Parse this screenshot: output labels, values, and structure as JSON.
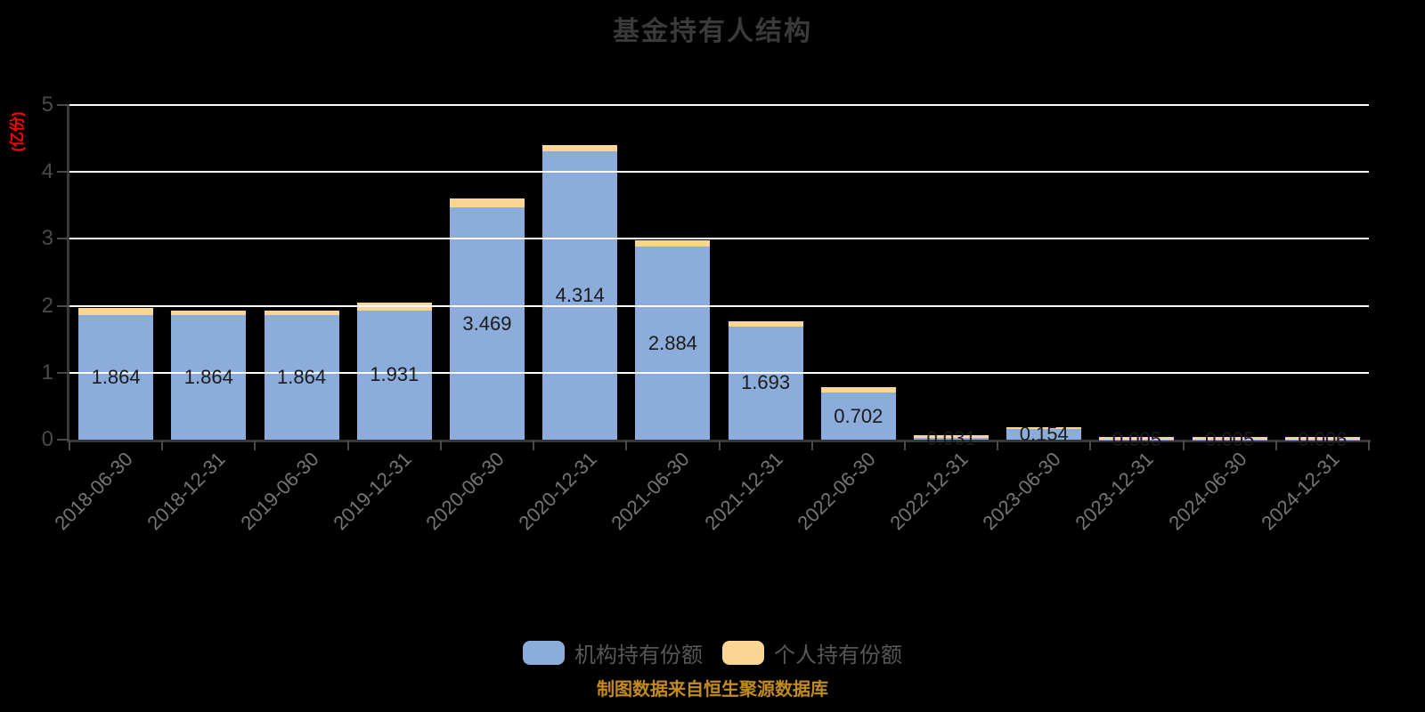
{
  "title": "基金持有人结构",
  "y_axis": {
    "unit_label": "(亿份)",
    "ticks": [
      0,
      1,
      2,
      3,
      4,
      5
    ]
  },
  "legend": {
    "items": [
      {
        "label": "机构持有份额",
        "color": "#8caddb"
      },
      {
        "label": "个人持有份额",
        "color": "#fbd693"
      }
    ]
  },
  "footer": {
    "text": "制图数据来自恒生聚源数据库"
  },
  "colors": {
    "background": "#000000",
    "title": "#3a3a3a",
    "grid": "#ffffff",
    "axis": "#383838",
    "tick": "#4a4a4a",
    "y_tick_label": "#4a4a4a",
    "x_tick_label": "#757575",
    "bar_label": "#1b1b1b",
    "unit_label": "#ff0000",
    "legend_label": "#575757",
    "footer": "#c28b1d",
    "institutional": "#8caddb",
    "individual": "#fbd693"
  },
  "chart_data": {
    "type": "bar",
    "stacked": true,
    "title": "基金持有人结构",
    "ylabel": "(亿份)",
    "ylim": [
      0,
      5
    ],
    "grid": true,
    "legend_position": "bottom",
    "categories": [
      "2018-06-30",
      "2018-12-31",
      "2019-06-30",
      "2019-12-31",
      "2020-06-30",
      "2020-12-31",
      "2021-06-30",
      "2021-12-31",
      "2022-06-30",
      "2022-12-31",
      "2023-06-30",
      "2023-12-31",
      "2024-06-30",
      "2024-12-31"
    ],
    "series": [
      {
        "name": "机构持有份额",
        "color": "#8caddb",
        "values": [
          1.864,
          1.864,
          1.864,
          1.931,
          3.469,
          4.314,
          2.884,
          1.693,
          0.702,
          0.031,
          0.154,
          0.005,
          0.005,
          0.006
        ]
      },
      {
        "name": "个人持有份额",
        "color": "#fbd693",
        "values": [
          0.1,
          0.07,
          0.06,
          0.12,
          0.13,
          0.09,
          0.09,
          0.07,
          0.08,
          0.04,
          0.03,
          0.035,
          0.035,
          0.04
        ]
      }
    ],
    "bar_labels": [
      "1.864",
      "1.864",
      "1.864",
      "1.931",
      "3.469",
      "4.314",
      "2.884",
      "1.693",
      "0.702",
      "0.031",
      "0.154",
      "0.005",
      "0.005",
      "0.006"
    ]
  }
}
